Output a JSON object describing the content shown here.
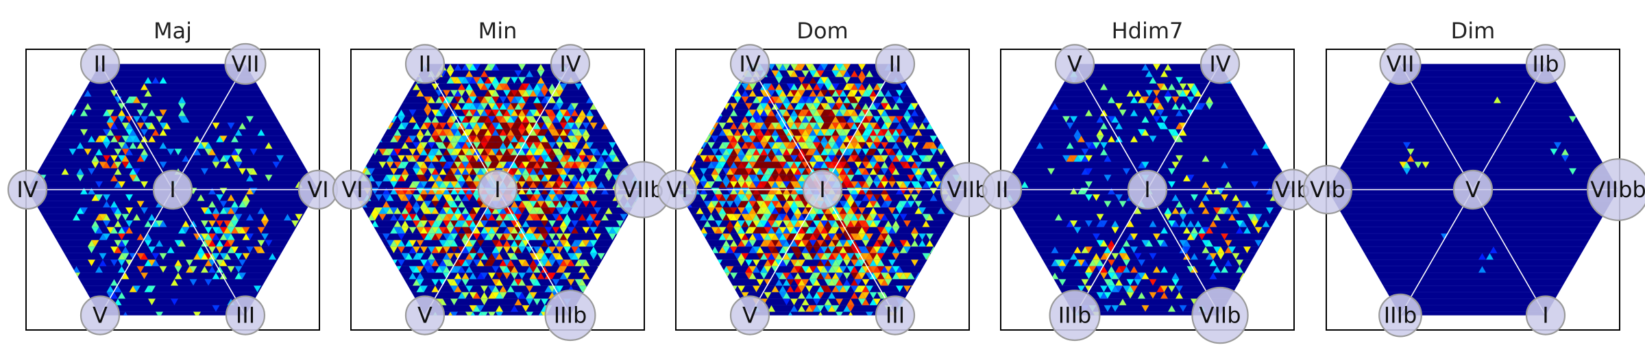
{
  "chart_data": [
    {
      "type": "heatmap",
      "title": "Maj",
      "center_label": "I",
      "nodes": {
        "top_left": "II",
        "top_right": "VII",
        "left": "IV",
        "right": "VI",
        "bottom_left": "V",
        "bottom_right": "III"
      },
      "node_emphasis": {
        "top_left": 1,
        "top_right": 1.05,
        "left": 1,
        "right": 1,
        "bottom_left": 1,
        "bottom_right": 1
      },
      "intensity": 0.2,
      "hotspots": [
        {
          "angle": 120,
          "r": 0.5,
          "w": 0.16,
          "amp": 0.55
        },
        {
          "angle": 150,
          "r": 0.45,
          "w": 0.14,
          "amp": 0.45
        },
        {
          "angle": 210,
          "r": 0.45,
          "w": 0.14,
          "amp": 0.45
        },
        {
          "angle": 240,
          "r": 0.55,
          "w": 0.16,
          "amp": 0.5
        },
        {
          "angle": 300,
          "r": 0.5,
          "w": 0.15,
          "amp": 0.5
        },
        {
          "angle": 330,
          "r": 0.5,
          "w": 0.15,
          "amp": 0.55
        },
        {
          "angle": 30,
          "r": 0.45,
          "w": 0.14,
          "amp": 0.3
        }
      ]
    },
    {
      "type": "heatmap",
      "title": "Min",
      "center_label": "I",
      "nodes": {
        "top_left": "II",
        "top_right": "IV",
        "left": "VI",
        "right": "VIIb",
        "bottom_left": "V",
        "bottom_right": "IIIb"
      },
      "node_emphasis": {
        "top_left": 1,
        "top_right": 1,
        "left": 1,
        "right": 1.45,
        "bottom_left": 1,
        "bottom_right": 1.3
      },
      "intensity": 0.7,
      "hotspots": [
        {
          "angle": 90,
          "r": 0.45,
          "w": 0.3,
          "amp": 0.75
        },
        {
          "angle": 70,
          "r": 0.3,
          "w": 0.2,
          "amp": 0.6
        },
        {
          "angle": 150,
          "r": 0.5,
          "w": 0.3,
          "amp": 0.55
        },
        {
          "angle": 270,
          "r": 0.45,
          "w": 0.28,
          "amp": 0.6
        },
        {
          "angle": 210,
          "r": 0.5,
          "w": 0.28,
          "amp": 0.45
        },
        {
          "angle": 330,
          "r": 0.5,
          "w": 0.28,
          "amp": 0.5
        },
        {
          "angle": 30,
          "r": 0.5,
          "w": 0.28,
          "amp": 0.45
        }
      ]
    },
    {
      "type": "heatmap",
      "title": "Dom",
      "center_label": "I",
      "nodes": {
        "top_left": "IV",
        "top_right": "II",
        "left": "VI",
        "right": "VIIb",
        "bottom_left": "V",
        "bottom_right": "III"
      },
      "node_emphasis": {
        "top_left": 1,
        "top_right": 1,
        "left": 1,
        "right": 1.4,
        "bottom_left": 1,
        "bottom_right": 1
      },
      "intensity": 0.8,
      "hotspots": [
        {
          "angle": 90,
          "r": 0.5,
          "w": 0.28,
          "amp": 0.8
        },
        {
          "angle": 180,
          "r": 0.5,
          "w": 0.3,
          "amp": 0.75
        },
        {
          "angle": 300,
          "r": 0.5,
          "w": 0.28,
          "amp": 0.75
        },
        {
          "angle": 30,
          "r": 0.45,
          "w": 0.3,
          "amp": 0.55
        },
        {
          "angle": 240,
          "r": 0.5,
          "w": 0.3,
          "amp": 0.55
        },
        {
          "angle": 140,
          "r": 0.5,
          "w": 0.3,
          "amp": 0.5
        }
      ]
    },
    {
      "type": "heatmap",
      "title": "Hdim7",
      "center_label": "I",
      "nodes": {
        "top_left": "V",
        "top_right": "IV",
        "left": "II",
        "right": "VIb",
        "bottom_left": "IIIb",
        "bottom_right": "VIIb"
      },
      "node_emphasis": {
        "top_left": 1,
        "top_right": 1,
        "left": 1,
        "right": 1.05,
        "bottom_left": 1.3,
        "bottom_right": 1.45
      },
      "intensity": 0.15,
      "hotspots": [
        {
          "angle": 80,
          "r": 0.55,
          "w": 0.18,
          "amp": 0.45
        },
        {
          "angle": 150,
          "r": 0.5,
          "w": 0.15,
          "amp": 0.35
        },
        {
          "angle": 240,
          "r": 0.55,
          "w": 0.18,
          "amp": 0.55
        },
        {
          "angle": 330,
          "r": 0.5,
          "w": 0.2,
          "amp": 0.5
        },
        {
          "angle": 270,
          "r": 0.7,
          "w": 0.15,
          "amp": 0.45
        }
      ]
    },
    {
      "type": "heatmap",
      "title": "Dim",
      "center_label": "V",
      "nodes": {
        "top_left": "VII",
        "top_right": "IIb",
        "left": "VIb",
        "right": "VIIbb",
        "bottom_left": "IIIb",
        "bottom_right": "I"
      },
      "node_emphasis": {
        "top_left": 1.05,
        "top_right": 1,
        "left": 1.25,
        "right": 1.6,
        "bottom_left": 1.1,
        "bottom_right": 1
      },
      "intensity": 0.02,
      "hotspots": [
        {
          "angle": 20,
          "r": 0.7,
          "w": 0.06,
          "amp": 0.5
        },
        {
          "angle": 160,
          "r": 0.5,
          "w": 0.06,
          "amp": 0.4
        },
        {
          "angle": 280,
          "r": 0.5,
          "w": 0.06,
          "amp": 0.4
        }
      ]
    }
  ]
}
